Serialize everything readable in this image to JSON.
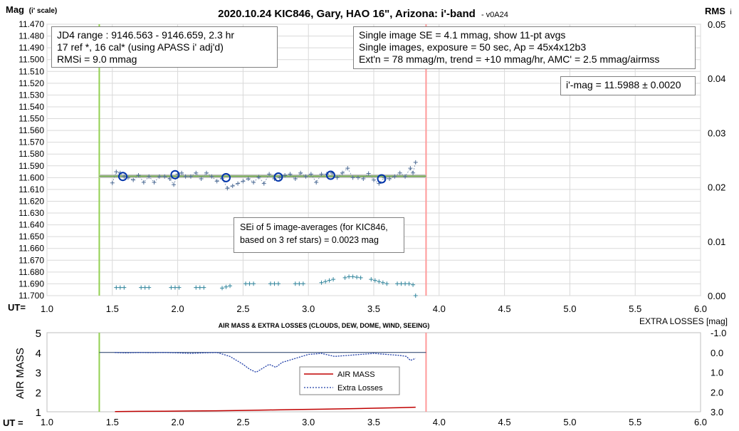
{
  "chart_data": [
    {
      "type": "scatter",
      "title": "2020.10.24 KIC846, Gary, HAO 16\", Arizona: i'-band",
      "version": "- v0A24",
      "ylabel_main": "Mag",
      "ylabel_sub": "(i' scale)",
      "y2label_main": "RMS",
      "y2label_sub": "i",
      "xlabel": "UT=",
      "xlim": [
        1.0,
        6.0
      ],
      "ylim": [
        11.47,
        11.7
      ],
      "y_reversed": true,
      "y2lim": [
        0.0,
        0.05
      ],
      "x_ticks": [
        "1.0",
        "1.5",
        "2.0",
        "2.5",
        "3.0",
        "3.5",
        "4.0",
        "4.5",
        "5.0",
        "5.5",
        "6.0"
      ],
      "y_ticks": [
        "11.470",
        "11.480",
        "11.490",
        "11.500",
        "11.510",
        "11.520",
        "11.530",
        "11.540",
        "11.550",
        "11.560",
        "11.570",
        "11.580",
        "11.590",
        "11.600",
        "11.610",
        "11.620",
        "11.630",
        "11.640",
        "11.650",
        "11.660",
        "11.670",
        "11.680",
        "11.690",
        "11.700"
      ],
      "y2_ticks": [
        "0.05",
        "0.04",
        "0.03",
        "0.02",
        "0.01",
        "0.00"
      ],
      "grid": true,
      "vlines": [
        {
          "x": 1.4,
          "color": "#92d050"
        },
        {
          "x": 3.9,
          "color": "#ff9999"
        }
      ],
      "fit_line": {
        "x": [
          1.4,
          3.9
        ],
        "y": 11.5988,
        "color": "#70ad47",
        "band_color": "#c0c0c0"
      },
      "series": [
        {
          "marker": "plus",
          "color": "#4f6d96",
          "x": [
            1.5,
            1.53,
            1.56,
            1.59,
            1.62,
            1.66,
            1.7,
            1.74,
            1.78,
            1.82,
            1.86,
            1.9,
            1.94,
            1.97,
            2.0,
            2.03,
            2.06,
            2.1,
            2.14,
            2.18,
            2.22,
            2.26,
            2.3,
            2.34,
            2.38,
            2.42,
            2.46,
            2.5,
            2.54,
            2.58,
            2.62,
            2.66,
            2.7,
            2.74,
            2.78,
            2.82,
            2.86,
            2.9,
            2.94,
            2.98,
            3.02,
            3.06,
            3.1,
            3.14,
            3.18,
            3.22,
            3.26,
            3.3,
            3.34,
            3.38,
            3.42,
            3.46,
            3.5,
            3.54,
            3.58,
            3.62,
            3.66,
            3.7,
            3.74,
            3.78,
            3.8,
            3.82
          ],
          "y": [
            11.6045,
            11.595,
            11.596,
            11.599,
            11.6,
            11.602,
            11.598,
            11.604,
            11.599,
            11.604,
            11.599,
            11.599,
            11.601,
            11.606,
            11.597,
            11.596,
            11.599,
            11.599,
            11.596,
            11.601,
            11.596,
            11.599,
            11.603,
            11.6005,
            11.609,
            11.607,
            11.605,
            11.603,
            11.601,
            11.604,
            11.5995,
            11.605,
            11.597,
            11.601,
            11.6,
            11.598,
            11.597,
            11.601,
            11.596,
            11.599,
            11.597,
            11.604,
            11.597,
            11.597,
            11.596,
            11.6,
            11.596,
            11.592,
            11.6,
            11.6,
            11.601,
            11.5965,
            11.602,
            11.605,
            11.6,
            11.601,
            11.599,
            11.596,
            11.599,
            11.592,
            11.596,
            11.587
          ]
        },
        {
          "marker": "circle",
          "color": "#0033aa",
          "x": [
            1.58,
            1.98,
            2.37,
            2.77,
            3.17,
            3.56
          ],
          "y": [
            11.599,
            11.5975,
            11.6,
            11.5995,
            11.598,
            11.601
          ]
        },
        {
          "marker": "plus",
          "axis": "rms",
          "color": "#31859c",
          "x": [
            1.53,
            1.56,
            1.59,
            1.72,
            1.75,
            1.78,
            1.95,
            1.98,
            2.01,
            2.14,
            2.17,
            2.2,
            2.34,
            2.37,
            2.4,
            2.52,
            2.55,
            2.58,
            2.71,
            2.74,
            2.77,
            2.9,
            2.93,
            2.96,
            3.1,
            3.13,
            3.16,
            3.19,
            3.28,
            3.31,
            3.34,
            3.37,
            3.4,
            3.48,
            3.51,
            3.54,
            3.57,
            3.6,
            3.68,
            3.71,
            3.74,
            3.77,
            3.8,
            3.82
          ],
          "y": [
            0.0015,
            0.0015,
            0.0015,
            0.0015,
            0.0015,
            0.0015,
            0.0015,
            0.0015,
            0.0015,
            0.0015,
            0.0015,
            0.0015,
            0.0014,
            0.0016,
            0.0018,
            0.0022,
            0.0022,
            0.0022,
            0.0022,
            0.0022,
            0.0022,
            0.0022,
            0.0022,
            0.0022,
            0.0024,
            0.0026,
            0.0028,
            0.003,
            0.0033,
            0.0035,
            0.0035,
            0.0034,
            0.0033,
            0.003,
            0.0028,
            0.0026,
            0.0024,
            0.0022,
            0.0022,
            0.0022,
            0.0022,
            0.0022,
            0.002,
            0.0
          ]
        }
      ]
    },
    {
      "type": "line",
      "title": "AIR MASS & EXTRA LOSSES (CLOUDS, DEW, DOME, WIND, SEEING)",
      "ylabel": "AIR MASS",
      "y2label": "EXTRA LOSSES [mag]",
      "xlabel": "UT =",
      "xlim": [
        1.0,
        6.0
      ],
      "ylim": [
        1,
        5
      ],
      "y2lim": [
        -1.0,
        3.0
      ],
      "y2_reversed": true,
      "x_ticks": [
        "1.0",
        "1.5",
        "2.0",
        "2.5",
        "3.0",
        "3.5",
        "4.0",
        "4.5",
        "5.0",
        "5.5",
        "6.0"
      ],
      "y_ticks": [
        "1",
        "2",
        "3",
        "4",
        "5"
      ],
      "y2_ticks": [
        "-1.0",
        "0.0",
        "1.0",
        "2.0",
        "3.0"
      ],
      "grid": false,
      "legend_position": "center-right",
      "vlines": [
        {
          "x": 1.4,
          "color": "#92d050"
        },
        {
          "x": 3.9,
          "color": "#ff9999"
        }
      ],
      "hline": {
        "y2": 0.0,
        "x": [
          1.4,
          3.9
        ],
        "color": "#1f3864"
      },
      "series": [
        {
          "name": "AIR MASS",
          "axis": "left",
          "color": "#c00000",
          "style": "solid",
          "x": [
            1.52,
            1.7,
            1.9,
            2.1,
            2.3,
            2.5,
            2.7,
            2.9,
            3.1,
            3.3,
            3.5,
            3.7,
            3.82
          ],
          "y": [
            1.01,
            1.02,
            1.03,
            1.04,
            1.05,
            1.07,
            1.09,
            1.11,
            1.13,
            1.15,
            1.18,
            1.21,
            1.23
          ]
        },
        {
          "name": "Extra Losses",
          "axis": "right",
          "color": "#1f3ea8",
          "style": "dashed",
          "x": [
            1.52,
            1.6,
            1.7,
            1.8,
            1.9,
            2.0,
            2.1,
            2.2,
            2.3,
            2.35,
            2.4,
            2.45,
            2.5,
            2.55,
            2.6,
            2.65,
            2.7,
            2.75,
            2.8,
            2.85,
            2.9,
            3.0,
            3.1,
            3.2,
            3.3,
            3.4,
            3.5,
            3.6,
            3.7,
            3.75,
            3.78,
            3.82
          ],
          "y": [
            0.0,
            0.02,
            0.0,
            0.01,
            0.0,
            0.02,
            0.05,
            0.02,
            0.0,
            0.1,
            0.2,
            0.4,
            0.6,
            0.85,
            1.0,
            0.8,
            0.6,
            0.75,
            0.5,
            0.4,
            0.3,
            0.1,
            0.05,
            0.2,
            0.15,
            0.1,
            0.05,
            0.1,
            0.15,
            0.2,
            0.4,
            0.3
          ]
        }
      ]
    }
  ],
  "annotations": {
    "jd_box": [
      "JD4 range : 9146.563 - 9146.659, 2.3  hr",
      "17 ref *, 16 cal* (using APASS i' adj'd)",
      "RMSi = 9.0 mmag"
    ],
    "image_box": [
      "Single image SE = 4.1 mmag, show 11-pt avgs",
      "Single images, exposure = 50 sec, Ap = 45x4x12b3",
      "Ext'n = 78 mmag/m, trend = +10 mmag/hr, AMC' = 2.5 mmag/airmss"
    ],
    "mag_box": "i'-mag = 11.5988 ± 0.0020",
    "sei_box": [
      "SEi of 5 image-averages (for KIC846,",
      "based on 3 ref stars) = 0.0023 mag"
    ]
  }
}
